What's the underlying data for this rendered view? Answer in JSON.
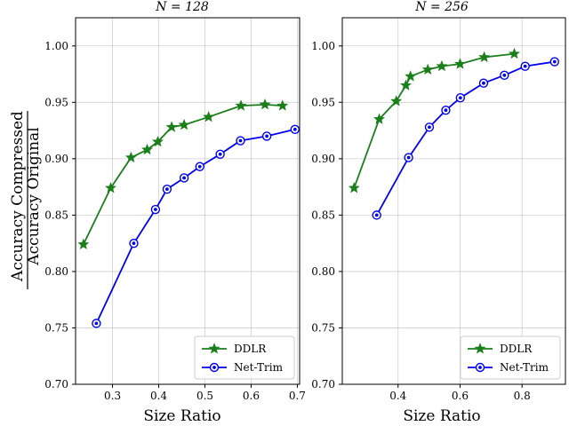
{
  "chart_data": [
    {
      "type": "line",
      "title": "N = 128",
      "xlabel": "Size Ratio",
      "ylabel_numerator": "Accuracy Compressed",
      "ylabel_denominator": "Accuracy Original",
      "xlim": [
        0.22,
        0.705
      ],
      "ylim": [
        0.7,
        1.025
      ],
      "xticks": [
        0.3,
        0.4,
        0.5,
        0.6,
        0.7
      ],
      "yticks": [
        0.7,
        0.75,
        0.8,
        0.85,
        0.9,
        0.95,
        1.0
      ],
      "grid": true,
      "legend": "lower-right",
      "series": [
        {
          "name": "DDLR",
          "color": "#1a7f1a",
          "marker": "star",
          "x": [
            0.237,
            0.296,
            0.34,
            0.375,
            0.398,
            0.428,
            0.455,
            0.508,
            0.578,
            0.63,
            0.668
          ],
          "y": [
            0.824,
            0.874,
            0.901,
            0.908,
            0.915,
            0.928,
            0.93,
            0.937,
            0.947,
            0.948,
            0.947
          ]
        },
        {
          "name": "Net-Trim",
          "color": "#0000ee",
          "marker": "circle",
          "x": [
            0.265,
            0.346,
            0.393,
            0.418,
            0.455,
            0.489,
            0.533,
            0.577,
            0.634,
            0.695
          ],
          "y": [
            0.754,
            0.825,
            0.855,
            0.873,
            0.883,
            0.893,
            0.904,
            0.916,
            0.92,
            0.926
          ]
        }
      ]
    },
    {
      "type": "line",
      "title": "N = 256",
      "xlabel": "Size Ratio",
      "xlim": [
        0.22,
        0.94
      ],
      "ylim": [
        0.7,
        1.025
      ],
      "xticks": [
        0.4,
        0.6,
        0.8
      ],
      "yticks": [
        0.7,
        0.75,
        0.8,
        0.85,
        0.9,
        0.95,
        1.0
      ],
      "grid": true,
      "legend": "lower-right",
      "series": [
        {
          "name": "DDLR",
          "color": "#1a7f1a",
          "marker": "star",
          "x": [
            0.258,
            0.339,
            0.394,
            0.425,
            0.44,
            0.496,
            0.541,
            0.6,
            0.678,
            0.775
          ],
          "y": [
            0.874,
            0.935,
            0.951,
            0.965,
            0.973,
            0.979,
            0.982,
            0.984,
            0.99,
            0.993
          ]
        },
        {
          "name": "Net-Trim",
          "color": "#0000ee",
          "marker": "circle",
          "x": [
            0.331,
            0.434,
            0.501,
            0.554,
            0.601,
            0.676,
            0.743,
            0.81,
            0.905
          ],
          "y": [
            0.85,
            0.901,
            0.928,
            0.943,
            0.954,
            0.967,
            0.974,
            0.982,
            0.986
          ]
        }
      ]
    }
  ]
}
